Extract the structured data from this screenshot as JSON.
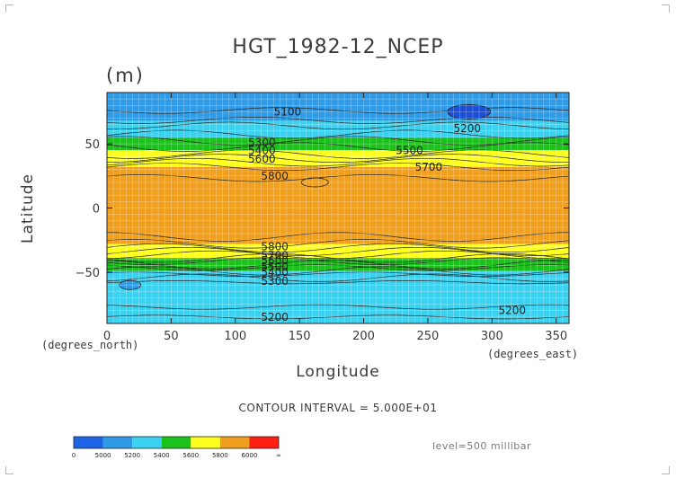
{
  "chart_data": {
    "type": "heatmap",
    "title": "HGT_1982-12_NCEP",
    "units": "(m)",
    "xlabel": "Longitude",
    "ylabel": "Latitude",
    "x_units_label": "(degrees_north)",
    "x_units_label_right": "(degrees_east)",
    "xlim": [
      0,
      360
    ],
    "ylim": [
      -90,
      90
    ],
    "x_ticks": [
      0,
      50,
      100,
      150,
      200,
      250,
      300,
      350
    ],
    "y_ticks": [
      -50,
      0,
      50
    ],
    "grid": true,
    "contour_interval_text": "CONTOUR INTERVAL = 5.000E+01",
    "level_text": "level=500 millibar",
    "color_levels": [
      {
        "range": [
          0,
          5000
        ],
        "color": "#1e64e6"
      },
      {
        "range": [
          5000,
          5200
        ],
        "color": "#2f9be6"
      },
      {
        "range": [
          5200,
          5400
        ],
        "color": "#3ad2f0"
      },
      {
        "range": [
          5400,
          5600
        ],
        "color": "#1cc21c"
      },
      {
        "range": [
          5600,
          5800
        ],
        "color": "#ffff1e"
      },
      {
        "range": [
          5800,
          6000
        ],
        "color": "#f0a01e"
      },
      {
        "range": [
          6000,
          "inf"
        ],
        "color": "#ff1e14"
      }
    ],
    "colorbar_labels": [
      "0",
      "5000",
      "5200",
      "5400",
      "5600",
      "5800",
      "6000",
      "∞"
    ],
    "zonal_profile": [
      {
        "lat": 90,
        "value": 5130
      },
      {
        "lat": 80,
        "value": 5130
      },
      {
        "lat": 70,
        "value": 5180
      },
      {
        "lat": 60,
        "value": 5300
      },
      {
        "lat": 55,
        "value": 5400
      },
      {
        "lat": 50,
        "value": 5500
      },
      {
        "lat": 45,
        "value": 5600
      },
      {
        "lat": 40,
        "value": 5680
      },
      {
        "lat": 35,
        "value": 5760
      },
      {
        "lat": 30,
        "value": 5830
      },
      {
        "lat": 20,
        "value": 5860
      },
      {
        "lat": 0,
        "value": 5860
      },
      {
        "lat": -20,
        "value": 5860
      },
      {
        "lat": -25,
        "value": 5840
      },
      {
        "lat": -30,
        "value": 5770
      },
      {
        "lat": -35,
        "value": 5680
      },
      {
        "lat": -40,
        "value": 5580
      },
      {
        "lat": -45,
        "value": 5480
      },
      {
        "lat": -50,
        "value": 5380
      },
      {
        "lat": -55,
        "value": 5290
      },
      {
        "lat": -60,
        "value": 5220
      },
      {
        "lat": -70,
        "value": 5200
      },
      {
        "lat": -80,
        "value": 5270
      },
      {
        "lat": -90,
        "value": 5330
      }
    ],
    "contour_labels": [
      {
        "text": "5100",
        "lon": 130,
        "lat": 75
      },
      {
        "text": "5200",
        "lon": 270,
        "lat": 62
      },
      {
        "text": "5300",
        "lon": 110,
        "lat": 51
      },
      {
        "text": "5400",
        "lon": 110,
        "lat": 45
      },
      {
        "text": "5500",
        "lon": 225,
        "lat": 45
      },
      {
        "text": "5600",
        "lon": 110,
        "lat": 38
      },
      {
        "text": "5700",
        "lon": 240,
        "lat": 32
      },
      {
        "text": "5800",
        "lon": 120,
        "lat": 25
      },
      {
        "text": "5800",
        "lon": 120,
        "lat": -30
      },
      {
        "text": "5700",
        "lon": 120,
        "lat": -37
      },
      {
        "text": "5600",
        "lon": 120,
        "lat": -41
      },
      {
        "text": "5500",
        "lon": 120,
        "lat": -46
      },
      {
        "text": "5400",
        "lon": 120,
        "lat": -50
      },
      {
        "text": "5300",
        "lon": 120,
        "lat": -57
      },
      {
        "text": "5200",
        "lon": 120,
        "lat": -85
      },
      {
        "text": "5200",
        "lon": 305,
        "lat": -80
      }
    ]
  }
}
